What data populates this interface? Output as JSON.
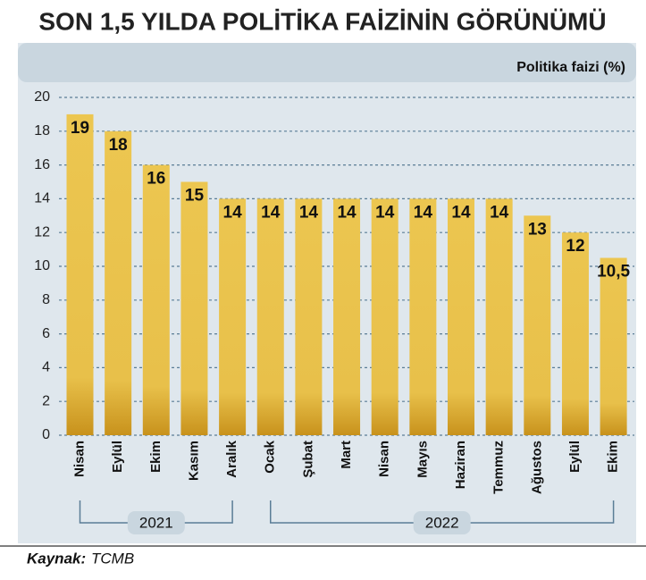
{
  "chart_data": {
    "type": "bar",
    "title": "SON 1,5 YILDA POLİTİKA FAİZİNİN GÖRÜNÜMÜ",
    "y_label": "Politika faizi  (%)",
    "categories": [
      "Nisan",
      "Eylül",
      "Ekim",
      "Kasım",
      "Aralık",
      "Ocak",
      "Şubat",
      "Mart",
      "Nisan",
      "Mayıs",
      "Haziran",
      "Temmuz",
      "Ağustos",
      "Eylül",
      "Ekim"
    ],
    "values": [
      19,
      18,
      16,
      15,
      14,
      14,
      14,
      14,
      14,
      14,
      14,
      14,
      13,
      12,
      10.5
    ],
    "value_labels": [
      "19",
      "18",
      "16",
      "15",
      "14",
      "14",
      "14",
      "14",
      "14",
      "14",
      "14",
      "14",
      "13",
      "12",
      "10,5"
    ],
    "x_groups": [
      "2021",
      "2022"
    ],
    "color": "#e8c24a",
    "ylim": [
      0,
      20
    ],
    "yticks": [
      0,
      2,
      4,
      6,
      8,
      10,
      12,
      14,
      16,
      18,
      20
    ],
    "grid": true,
    "source_label": "Kaynak:",
    "source": "TCMB"
  }
}
